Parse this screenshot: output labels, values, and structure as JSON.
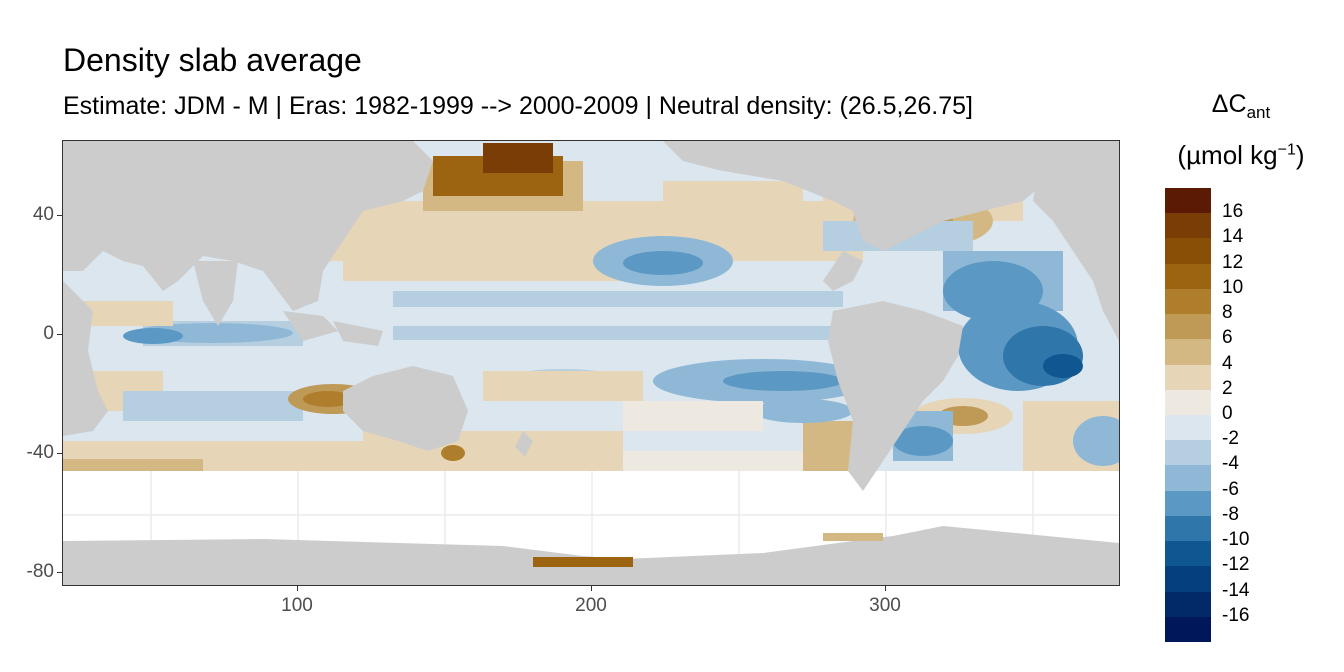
{
  "title": "Density slab average",
  "subtitle": "Estimate: JDM - M | Eras: 1982-1999 --> 2000-2009 | Neutral density: (26.5,26.75]",
  "chart_data": {
    "type": "heatmap",
    "xlim": [
      20,
      380
    ],
    "ylim": [
      -85,
      65
    ],
    "x_ticks": [
      "100",
      "200",
      "300"
    ],
    "y_ticks": [
      "40",
      "0",
      "-40",
      "-80"
    ],
    "grid": true,
    "legend": {
      "title_main": "ΔC",
      "title_sub": "ant",
      "unit": "(µmol kg",
      "unit_sup": "−1",
      "unit_close": ")",
      "placement": "right",
      "labels": [
        "16",
        "14",
        "12",
        "10",
        "8",
        "6",
        "4",
        "2",
        "0",
        "-2",
        "-4",
        "-6",
        "-8",
        "-10",
        "-12",
        "-14",
        "-16"
      ],
      "colors": [
        "#5a1a03",
        "#7a3d05",
        "#8a4f07",
        "#9c6410",
        "#ae7e2c",
        "#bf9a56",
        "#d3b884",
        "#e6d6b7",
        "#ede9e0",
        "#dbe6ee",
        "#b5cfe1",
        "#8eb8d6",
        "#5b99c4",
        "#2f76ab",
        "#0e5791",
        "#053f7d",
        "#022a69",
        "#00175a"
      ]
    },
    "land_color": "#cccccc",
    "gap_color": "#ffffff"
  }
}
